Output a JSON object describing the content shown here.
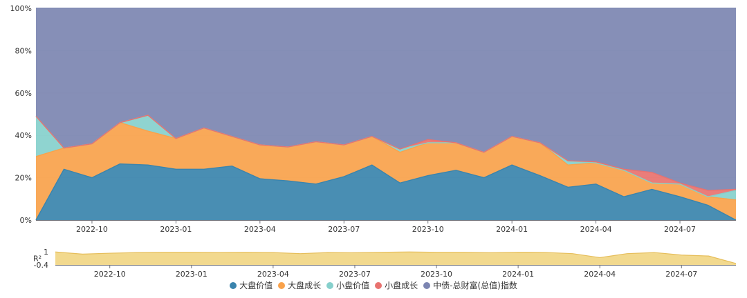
{
  "chart_data": [
    {
      "type": "area",
      "stacked": true,
      "normalized": true,
      "x": [
        "2022-08",
        "2022-09",
        "2022-10",
        "2022-11",
        "2022-12",
        "2023-01",
        "2023-02",
        "2023-03",
        "2023-04",
        "2023-05",
        "2023-06",
        "2023-07",
        "2023-08",
        "2023-09",
        "2023-10",
        "2023-11",
        "2023-12",
        "2024-01",
        "2024-02",
        "2024-03",
        "2024-04",
        "2024-05",
        "2024-06",
        "2024-07",
        "2024-08",
        "2024-09"
      ],
      "x_tick_labels": [
        "2022-10",
        "2023-01",
        "2023-04",
        "2023-07",
        "2023-10",
        "2024-01",
        "2024-04",
        "2024-07"
      ],
      "y_tick_labels": [
        "0%",
        "20%",
        "40%",
        "60%",
        "80%",
        "100%"
      ],
      "ylim": [
        0,
        100
      ],
      "series": [
        {
          "name": "大盘价值",
          "color": "#3a84ad",
          "values": [
            0,
            24,
            20,
            26.5,
            26,
            24,
            24,
            25.5,
            19.5,
            18.5,
            17,
            20.5,
            26,
            17.5,
            21,
            23.5,
            20,
            26,
            21,
            15.5,
            17,
            11,
            14.5,
            11,
            7,
            0
          ]
        },
        {
          "name": "大盘成长",
          "color": "#f9a24b",
          "values": [
            30,
            10,
            16,
            19.5,
            16,
            14.5,
            19.5,
            14,
            16,
            16,
            20,
            15,
            13.5,
            14.5,
            15.5,
            13,
            12,
            13.5,
            15.5,
            10.5,
            10,
            12.5,
            3,
            6,
            4,
            9.5
          ]
        },
        {
          "name": "小盘价值",
          "color": "#86d0cc",
          "values": [
            19,
            0,
            0,
            0,
            7.5,
            0,
            0,
            0,
            0,
            0,
            0,
            0,
            0,
            1.5,
            0,
            0,
            0,
            0,
            0,
            2,
            0,
            0,
            0,
            0,
            0,
            4.5
          ]
        },
        {
          "name": "小盘成长",
          "color": "#e8726f",
          "values": [
            0,
            0,
            0,
            0,
            0,
            0,
            0,
            0,
            0,
            0,
            0,
            0,
            0,
            0,
            1.5,
            0,
            0,
            0,
            0,
            0,
            0.5,
            0.5,
            5,
            0.5,
            3,
            0.5
          ]
        },
        {
          "name": "中债-总财富(总值)指数",
          "color": "#7c85b1",
          "values": [
            51,
            66,
            64,
            54,
            50.5,
            61.5,
            56.5,
            60.5,
            64.5,
            65.5,
            63,
            64.5,
            60.5,
            66.5,
            62,
            63.5,
            68,
            60.5,
            63.5,
            72,
            72.5,
            76,
            77.5,
            82.5,
            86,
            85.5
          ]
        }
      ]
    },
    {
      "type": "area",
      "ylabel": "R²",
      "y_tick_labels": [
        "1",
        "-0.4"
      ],
      "ylim": [
        -0.4,
        1
      ],
      "x_tick_labels": [
        "2022-10",
        "2023-01",
        "2023-04",
        "2023-07",
        "2023-10",
        "2024-01",
        "2024-04",
        "2024-07"
      ],
      "color": "#f0d27a",
      "values": [
        0.98,
        0.75,
        0.85,
        0.92,
        0.95,
        0.95,
        0.93,
        0.95,
        0.92,
        0.8,
        0.92,
        0.9,
        0.95,
        0.98,
        0.95,
        0.95,
        0.9,
        0.95,
        0.93,
        0.8,
        0.38,
        0.8,
        0.92,
        0.65,
        0.55,
        -0.25
      ]
    }
  ]
}
